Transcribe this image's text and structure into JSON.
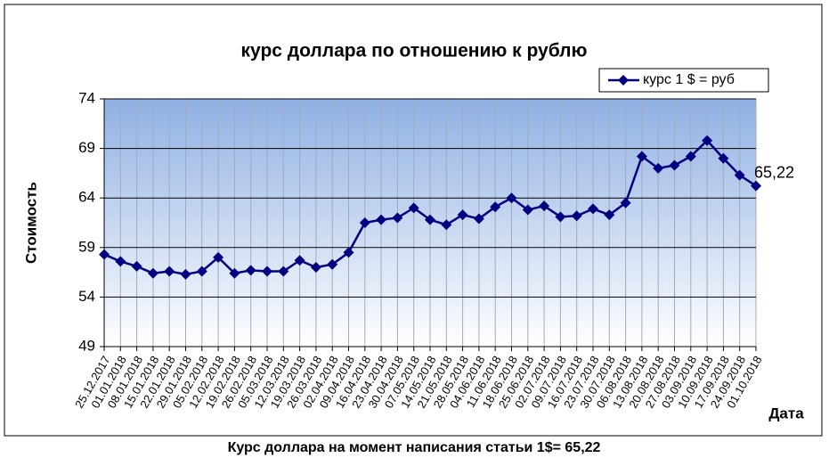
{
  "chart_data": {
    "type": "line",
    "title": "курс доллара по отношению к рублю",
    "y_label": "Стоимость",
    "x_label": "Дата",
    "caption": "Курс доллара на момент написания статьи 1$= 65,22",
    "categories": [
      "25.12.2017",
      "01.01.2018",
      "08.01.2018",
      "15.01.2018",
      "22.01.2018",
      "29.01.2018",
      "05.02.2018",
      "12.02.2018",
      "19.02.2018",
      "26.02.2018",
      "05.03.2018",
      "12.03.2018",
      "19.03.2018",
      "26.03.2018",
      "02.04.2018",
      "09.04.2018",
      "16.04.2018",
      "23.04.2018",
      "30.04.2018",
      "07.05.2018",
      "14.05.2018",
      "21.05.2018",
      "28.05.2018",
      "04.06.2018",
      "11.06.2018",
      "18.06.2018",
      "25.06.2018",
      "02.07.2018",
      "09.07.2018",
      "16.07.2018",
      "23.07.2018",
      "30.07.2018",
      "06.08.2018",
      "13.08.2018",
      "20.08.2018",
      "27.08.2018",
      "03.09.2018",
      "10.09.2018",
      "17.09.2018",
      "24.09.2018",
      "01.10.2018"
    ],
    "series": [
      {
        "name": "курс 1 $ = руб",
        "color": "#000080",
        "values": [
          58.3,
          57.6,
          57.1,
          56.4,
          56.6,
          56.3,
          56.6,
          58.0,
          56.4,
          56.7,
          56.6,
          56.6,
          57.7,
          57.0,
          57.3,
          58.5,
          61.5,
          61.8,
          62.0,
          63.0,
          61.8,
          61.3,
          62.3,
          61.9,
          63.1,
          64.0,
          62.8,
          63.2,
          62.1,
          62.2,
          62.9,
          62.3,
          63.5,
          68.2,
          67.0,
          67.3,
          68.2,
          69.8,
          68.0,
          66.3,
          65.22
        ],
        "value_labels": [
          null,
          null,
          null,
          null,
          null,
          null,
          null,
          null,
          null,
          null,
          null,
          null,
          null,
          null,
          null,
          null,
          null,
          null,
          null,
          null,
          null,
          null,
          null,
          null,
          null,
          null,
          null,
          null,
          null,
          null,
          null,
          null,
          null,
          null,
          null,
          null,
          null,
          null,
          null,
          null,
          "65,22"
        ]
      }
    ],
    "ylim": [
      49,
      74
    ],
    "yticks": [
      49,
      54,
      59,
      64,
      69,
      74
    ],
    "grid": true,
    "legend": "top-right"
  }
}
